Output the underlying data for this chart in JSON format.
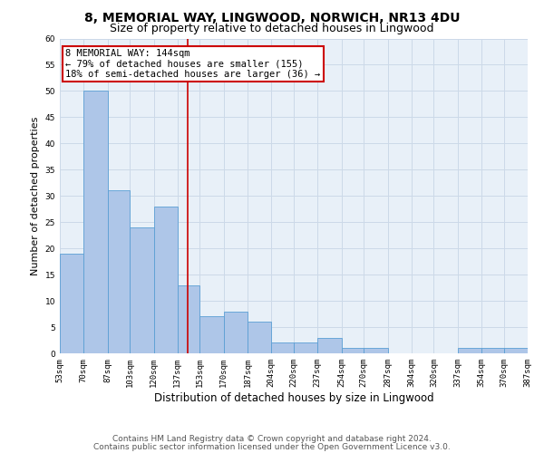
{
  "title1": "8, MEMORIAL WAY, LINGWOOD, NORWICH, NR13 4DU",
  "title2": "Size of property relative to detached houses in Lingwood",
  "xlabel": "Distribution of detached houses by size in Lingwood",
  "ylabel": "Number of detached properties",
  "bar_left_edges": [
    53,
    70,
    87,
    103,
    120,
    137,
    153,
    170,
    187,
    204,
    220,
    237,
    254,
    270,
    287,
    304,
    320,
    337,
    354,
    370
  ],
  "bar_widths": [
    17,
    17,
    16,
    17,
    17,
    16,
    17,
    17,
    17,
    16,
    17,
    17,
    16,
    17,
    17,
    16,
    17,
    17,
    16,
    17
  ],
  "bar_heights": [
    19,
    50,
    31,
    24,
    28,
    13,
    7,
    8,
    6,
    2,
    2,
    3,
    1,
    1,
    0,
    0,
    0,
    1,
    1,
    1
  ],
  "bar_color": "#aec6e8",
  "bar_edgecolor": "#5a9fd4",
  "vline_x": 144,
  "vline_color": "#cc0000",
  "annotation_line1": "8 MEMORIAL WAY: 144sqm",
  "annotation_line2": "← 79% of detached houses are smaller (155)",
  "annotation_line3": "18% of semi-detached houses are larger (36) →",
  "annotation_box_color": "#ffffff",
  "annotation_box_edgecolor": "#cc0000",
  "xlim": [
    53,
    387
  ],
  "ylim": [
    0,
    60
  ],
  "yticks": [
    0,
    5,
    10,
    15,
    20,
    25,
    30,
    35,
    40,
    45,
    50,
    55,
    60
  ],
  "xtick_labels": [
    "53sqm",
    "70sqm",
    "87sqm",
    "103sqm",
    "120sqm",
    "137sqm",
    "153sqm",
    "170sqm",
    "187sqm",
    "204sqm",
    "220sqm",
    "237sqm",
    "254sqm",
    "270sqm",
    "287sqm",
    "304sqm",
    "320sqm",
    "337sqm",
    "354sqm",
    "370sqm",
    "387sqm"
  ],
  "xtick_positions": [
    53,
    70,
    87,
    103,
    120,
    137,
    153,
    170,
    187,
    204,
    220,
    237,
    254,
    270,
    287,
    304,
    320,
    337,
    354,
    370,
    387
  ],
  "grid_color": "#ccd9e8",
  "background_color": "#e8f0f8",
  "footer_line1": "Contains HM Land Registry data © Crown copyright and database right 2024.",
  "footer_line2": "Contains public sector information licensed under the Open Government Licence v3.0.",
  "title1_fontsize": 10,
  "title2_fontsize": 9,
  "xlabel_fontsize": 8.5,
  "ylabel_fontsize": 8,
  "annotation_fontsize": 7.5,
  "footer_fontsize": 6.5,
  "tick_fontsize": 6.5
}
